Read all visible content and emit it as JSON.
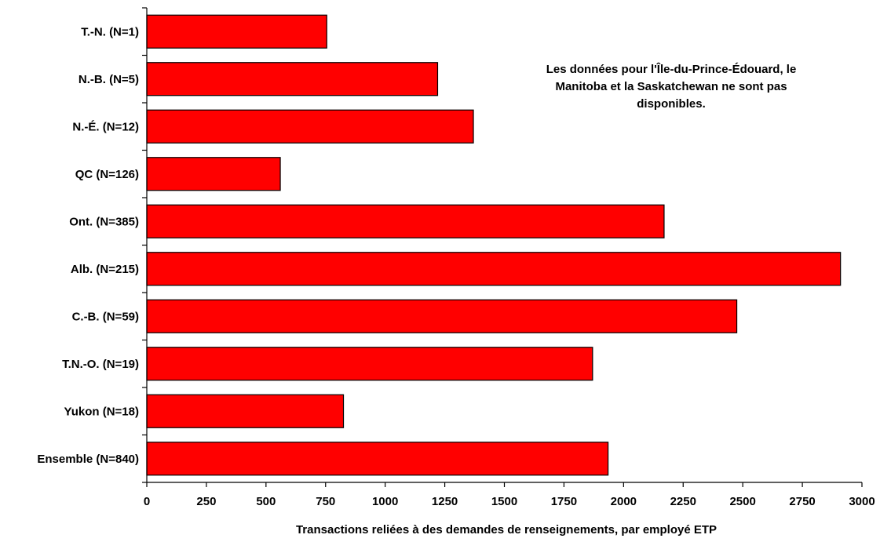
{
  "chart_data": {
    "type": "bar",
    "orientation": "horizontal",
    "categories": [
      "T.-N. (N=1)",
      "N.-B. (N=5)",
      "N.-É. (N=12)",
      "QC (N=126)",
      "Ont. (N=385)",
      "Alb. (N=215)",
      "C.-B. (N=59)",
      "T.N.-O. (N=19)",
      "Yukon (N=18)",
      "Ensemble (N=840)"
    ],
    "values": [
      755,
      1220,
      1370,
      560,
      2170,
      2910,
      2475,
      1870,
      825,
      1935
    ],
    "xlabel": "Transactions reliées à des demandes de renseignements, par employé ETP",
    "ylabel": "",
    "xlim": [
      0,
      3000
    ],
    "xticks": [
      "0",
      "250",
      "500",
      "750",
      "1000",
      "1250",
      "1500",
      "1750",
      "2000",
      "2250",
      "2500",
      "2750",
      "3000"
    ],
    "annotation": "Les données pour l'Île-du-Prince-Édouard, le Manitoba et la Saskatchewan ne sont pas disponibles.",
    "bar_color": "#ff0000",
    "grid": false,
    "legend": "none"
  }
}
